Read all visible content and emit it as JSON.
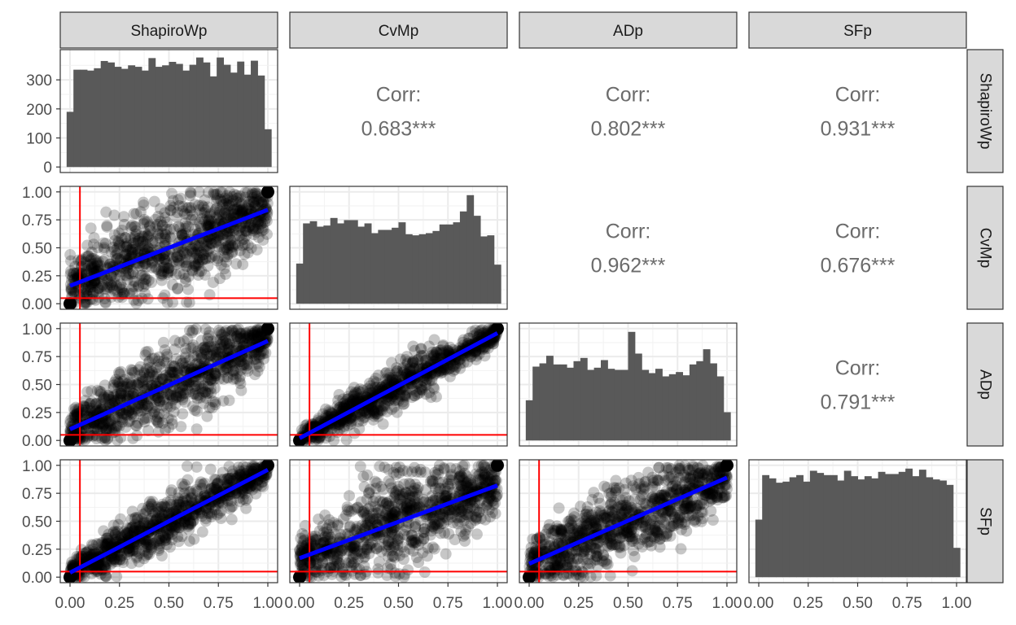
{
  "chart_data": {
    "type": "scatter-matrix",
    "title": "",
    "variables": [
      "ShapiroWp",
      "CvMp",
      "ADp",
      "SFp"
    ],
    "axis_range": [
      0,
      1
    ],
    "x_ticks": [
      "0.00",
      "0.25",
      "0.50",
      "0.75",
      "1.00"
    ],
    "y_ticks_scatter": [
      "0.00",
      "0.25",
      "0.50",
      "0.75",
      "1.00"
    ],
    "y_ticks_hist": [
      "0",
      "100",
      "200",
      "300"
    ],
    "hist_count_range": [
      0,
      385
    ],
    "grid": true,
    "reference_lines": {
      "x": 0.05,
      "y": 0.05,
      "color": "#ff0000"
    },
    "fit_line_color": "#0000ff",
    "point_color": "#000000",
    "hist_fill": "#595959",
    "correlations": [
      {
        "row": "CvMp",
        "col": "ShapiroWp",
        "label": "Corr:",
        "value": "0.683***"
      },
      {
        "row": "ADp",
        "col": "ShapiroWp",
        "label": "Corr:",
        "value": "0.802***"
      },
      {
        "row": "SFp",
        "col": "ShapiroWp",
        "label": "Corr:",
        "value": "0.931***"
      },
      {
        "row": "ADp",
        "col": "CvMp",
        "label": "Corr:",
        "value": "0.962***"
      },
      {
        "row": "SFp",
        "col": "CvMp",
        "label": "Corr:",
        "value": "0.676***"
      },
      {
        "row": "SFp",
        "col": "ADp",
        "label": "Corr:",
        "value": "0.791***"
      }
    ],
    "histograms": {
      "ShapiroWp": [
        190,
        335,
        335,
        332,
        340,
        365,
        360,
        345,
        338,
        350,
        345,
        332,
        375,
        345,
        350,
        362,
        355,
        332,
        352,
        377,
        360,
        312,
        377,
        352,
        325,
        363,
        318,
        366,
        315,
        130
      ],
      "CvMp": [
        0.37,
        0.74,
        0.76,
        0.71,
        0.72,
        0.79,
        0.74,
        0.77,
        0.77,
        0.71,
        0.74,
        0.65,
        0.68,
        0.68,
        0.7,
        0.75,
        0.64,
        0.63,
        0.64,
        0.65,
        0.67,
        0.73,
        0.73,
        0.75,
        0.85,
        1.0,
        0.81,
        0.62,
        0.63,
        0.36
      ],
      "ADp": [
        0.37,
        0.68,
        0.71,
        0.78,
        0.7,
        0.7,
        0.67,
        0.73,
        0.76,
        0.65,
        0.67,
        0.74,
        0.66,
        0.65,
        0.65,
        1.0,
        0.8,
        0.65,
        0.62,
        0.66,
        0.59,
        0.61,
        0.63,
        0.6,
        0.7,
        0.73,
        0.84,
        0.71,
        0.59,
        0.26
      ],
      "SFp": [
        0.53,
        0.94,
        0.91,
        0.87,
        0.88,
        0.92,
        0.94,
        0.88,
        0.98,
        0.96,
        0.94,
        0.94,
        0.89,
        0.98,
        0.93,
        0.9,
        0.93,
        0.91,
        0.97,
        0.95,
        0.95,
        0.97,
        1.0,
        0.93,
        0.99,
        0.92,
        0.9,
        0.89,
        0.85,
        0.27
      ]
    },
    "scatter_panels": [
      {
        "x": "ShapiroWp",
        "y": "CvMp",
        "fit": [
          [
            0,
            0.16
          ],
          [
            1,
            0.84
          ]
        ]
      },
      {
        "x": "ShapiroWp",
        "y": "ADp",
        "fit": [
          [
            0,
            0.1
          ],
          [
            1,
            0.89
          ]
        ]
      },
      {
        "x": "ShapiroWp",
        "y": "SFp",
        "fit": [
          [
            0,
            0.04
          ],
          [
            1,
            0.96
          ]
        ]
      },
      {
        "x": "CvMp",
        "y": "ADp",
        "fit": [
          [
            0,
            0.02
          ],
          [
            1,
            0.96
          ]
        ]
      },
      {
        "x": "CvMp",
        "y": "SFp",
        "fit": [
          [
            0,
            0.17
          ],
          [
            1,
            0.82
          ]
        ]
      },
      {
        "x": "ADp",
        "y": "SFp",
        "fit": [
          [
            0,
            0.12
          ],
          [
            1,
            0.89
          ]
        ]
      }
    ]
  }
}
